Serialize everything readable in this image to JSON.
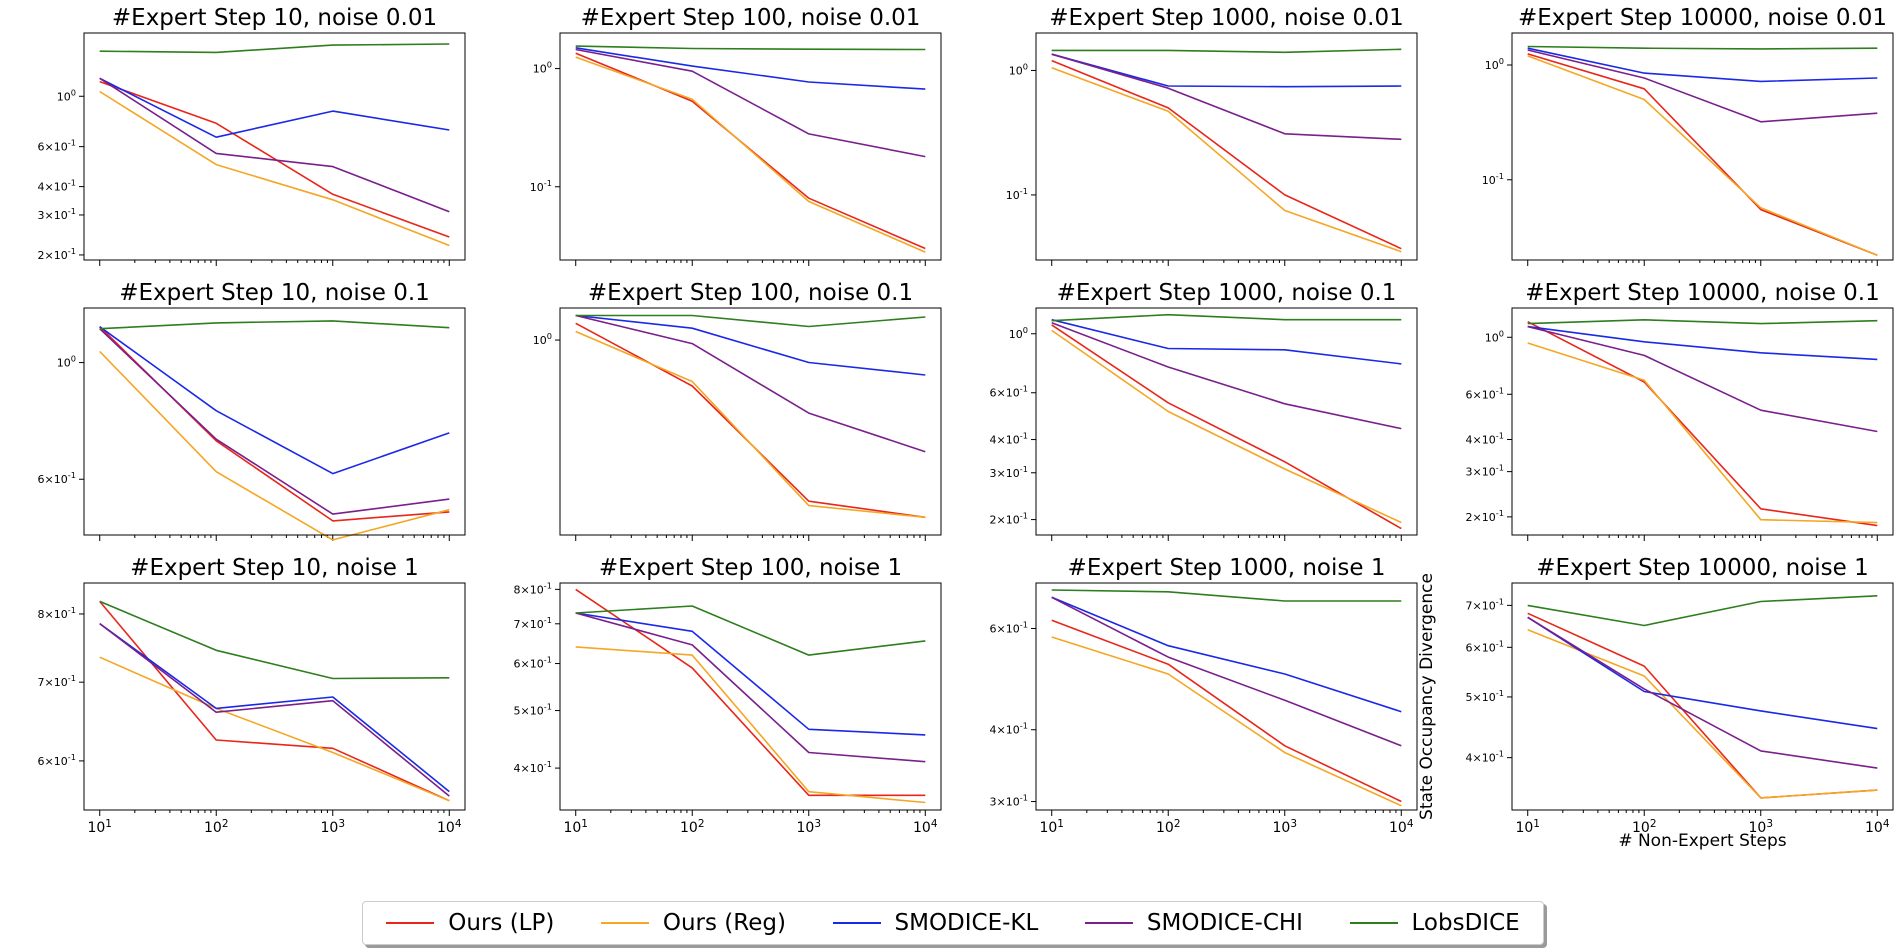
{
  "legend": [
    {
      "name": "Ours (LP)",
      "color": "#e8261a"
    },
    {
      "name": "Ours (Reg)",
      "color": "#f5a623"
    },
    {
      "name": "SMODICE-KL",
      "color": "#1a29e8"
    },
    {
      "name": "SMODICE-CHI",
      "color": "#7a1f8c"
    },
    {
      "name": "LobsDICE",
      "color": "#2e7d1e"
    }
  ],
  "chart_data": [
    {
      "type": "line",
      "title": "#Expert Step 10, noise 0.01",
      "xlabel": "",
      "ylabel": "",
      "x": [
        10,
        100,
        1000,
        10000
      ],
      "xtick_labels": [],
      "log_y": true,
      "ylim": [
        0.19,
        1.9
      ],
      "yticks": [
        {
          "v": 1.0,
          "l": "10^0"
        },
        {
          "v": 0.6,
          "l": "6×10^-1"
        },
        {
          "v": 0.4,
          "l": "4×10^-1"
        },
        {
          "v": 0.3,
          "l": "3×10^-1"
        },
        {
          "v": 0.2,
          "l": "2×10^-1"
        }
      ],
      "series": [
        {
          "name": "Ours (LP)",
          "values": [
            1.16,
            0.76,
            0.37,
            0.24
          ]
        },
        {
          "name": "Ours (Reg)",
          "values": [
            1.05,
            0.5,
            0.35,
            0.22
          ]
        },
        {
          "name": "SMODICE-KL",
          "values": [
            1.2,
            0.66,
            0.86,
            0.71
          ]
        },
        {
          "name": "SMODICE-CHI",
          "values": [
            1.2,
            0.56,
            0.49,
            0.31
          ]
        },
        {
          "name": "LobsDICE",
          "values": [
            1.58,
            1.56,
            1.68,
            1.7
          ]
        }
      ]
    },
    {
      "type": "line",
      "title": "#Expert Step 100, noise 0.01",
      "xlabel": "",
      "ylabel": "",
      "x": [
        10,
        100,
        1000,
        10000
      ],
      "xtick_labels": [],
      "log_y": true,
      "ylim": [
        0.024,
        2.0
      ],
      "yticks": [
        {
          "v": 1.0,
          "l": "10^0"
        },
        {
          "v": 0.1,
          "l": "10^-1"
        }
      ],
      "series": [
        {
          "name": "Ours (LP)",
          "values": [
            1.35,
            0.53,
            0.08,
            0.03
          ]
        },
        {
          "name": "Ours (Reg)",
          "values": [
            1.25,
            0.55,
            0.075,
            0.028
          ]
        },
        {
          "name": "SMODICE-KL",
          "values": [
            1.5,
            1.05,
            0.77,
            0.67
          ]
        },
        {
          "name": "SMODICE-CHI",
          "values": [
            1.45,
            0.95,
            0.28,
            0.18
          ]
        },
        {
          "name": "LobsDICE",
          "values": [
            1.55,
            1.48,
            1.46,
            1.45
          ]
        }
      ]
    },
    {
      "type": "line",
      "title": "#Expert Step 1000, noise 0.01",
      "xlabel": "",
      "ylabel": "",
      "x": [
        10,
        100,
        1000,
        10000
      ],
      "xtick_labels": [],
      "log_y": true,
      "ylim": [
        0.03,
        2.0
      ],
      "yticks": [
        {
          "v": 1.0,
          "l": "10^0"
        },
        {
          "v": 0.1,
          "l": "10^-1"
        }
      ],
      "series": [
        {
          "name": "Ours (LP)",
          "values": [
            1.2,
            0.5,
            0.1,
            0.037
          ]
        },
        {
          "name": "Ours (Reg)",
          "values": [
            1.05,
            0.47,
            0.075,
            0.035
          ]
        },
        {
          "name": "SMODICE-KL",
          "values": [
            1.35,
            0.75,
            0.74,
            0.75
          ]
        },
        {
          "name": "SMODICE-CHI",
          "values": [
            1.35,
            0.72,
            0.31,
            0.28
          ]
        },
        {
          "name": "LobsDICE",
          "values": [
            1.45,
            1.45,
            1.4,
            1.48
          ]
        }
      ]
    },
    {
      "type": "line",
      "title": "#Expert Step 10000, noise 0.01",
      "xlabel": "",
      "ylabel": "",
      "x": [
        10,
        100,
        1000,
        10000
      ],
      "xtick_labels": [],
      "log_y": true,
      "ylim": [
        0.02,
        1.9
      ],
      "yticks": [
        {
          "v": 1.0,
          "l": "10^0"
        },
        {
          "v": 0.1,
          "l": "10^-1"
        }
      ],
      "series": [
        {
          "name": "Ours (LP)",
          "values": [
            1.25,
            0.62,
            0.055,
            0.022
          ]
        },
        {
          "name": "Ours (Reg)",
          "values": [
            1.2,
            0.5,
            0.057,
            0.022
          ]
        },
        {
          "name": "SMODICE-KL",
          "values": [
            1.4,
            0.85,
            0.72,
            0.77
          ]
        },
        {
          "name": "SMODICE-CHI",
          "values": [
            1.35,
            0.77,
            0.32,
            0.38
          ]
        },
        {
          "name": "LobsDICE",
          "values": [
            1.45,
            1.4,
            1.38,
            1.4
          ]
        }
      ]
    },
    {
      "type": "line",
      "title": "#Expert Step 10, noise 0.1",
      "xlabel": "",
      "ylabel": "",
      "x": [
        10,
        100,
        1000,
        10000
      ],
      "xtick_labels": [],
      "log_y": true,
      "ylim": [
        0.47,
        1.27
      ],
      "yticks": [
        {
          "v": 1.0,
          "l": "10^0"
        },
        {
          "v": 0.6,
          "l": "6×10^-1"
        }
      ],
      "series": [
        {
          "name": "Ours (LP)",
          "values": [
            1.17,
            0.71,
            0.5,
            0.52
          ]
        },
        {
          "name": "Ours (Reg)",
          "values": [
            1.05,
            0.62,
            0.46,
            0.525
          ]
        },
        {
          "name": "SMODICE-KL",
          "values": [
            1.17,
            0.81,
            0.615,
            0.735
          ]
        },
        {
          "name": "SMODICE-CHI",
          "values": [
            1.16,
            0.715,
            0.515,
            0.55
          ]
        },
        {
          "name": "LobsDICE",
          "values": [
            1.16,
            1.19,
            1.2,
            1.165
          ]
        }
      ]
    },
    {
      "type": "line",
      "title": "#Expert Step 100, noise 0.1",
      "xlabel": "",
      "ylabel": "",
      "x": [
        10,
        100,
        1000,
        10000
      ],
      "xtick_labels": [],
      "log_y": true,
      "ylim": [
        0.33,
        1.2
      ],
      "yticks": [
        {
          "v": 1.0,
          "l": "10^0"
        }
      ],
      "series": [
        {
          "name": "Ours (LP)",
          "values": [
            1.1,
            0.77,
            0.4,
            0.365
          ]
        },
        {
          "name": "Ours (Reg)",
          "values": [
            1.05,
            0.79,
            0.39,
            0.365
          ]
        },
        {
          "name": "SMODICE-KL",
          "values": [
            1.15,
            1.07,
            0.88,
            0.82
          ]
        },
        {
          "name": "SMODICE-CHI",
          "values": [
            1.15,
            0.98,
            0.66,
            0.53
          ]
        },
        {
          "name": "LobsDICE",
          "values": [
            1.15,
            1.15,
            1.08,
            1.14
          ]
        }
      ]
    },
    {
      "type": "line",
      "title": "#Expert Step 1000, noise 0.1",
      "xlabel": "",
      "ylabel": "",
      "x": [
        10,
        100,
        1000,
        10000
      ],
      "xtick_labels": [],
      "log_y": true,
      "ylim": [
        0.175,
        1.25
      ],
      "yticks": [
        {
          "v": 1.0,
          "l": "10^0"
        },
        {
          "v": 0.6,
          "l": "6×10^-1"
        },
        {
          "v": 0.4,
          "l": "4×10^-1"
        },
        {
          "v": 0.3,
          "l": "3×10^-1"
        },
        {
          "v": 0.2,
          "l": "2×10^-1"
        }
      ],
      "series": [
        {
          "name": "Ours (LP)",
          "values": [
            1.08,
            0.55,
            0.33,
            0.185
          ]
        },
        {
          "name": "Ours (Reg)",
          "values": [
            1.03,
            0.51,
            0.31,
            0.195
          ]
        },
        {
          "name": "SMODICE-KL",
          "values": [
            1.13,
            0.88,
            0.87,
            0.77
          ]
        },
        {
          "name": "SMODICE-CHI",
          "values": [
            1.1,
            0.75,
            0.545,
            0.44
          ]
        },
        {
          "name": "LobsDICE",
          "values": [
            1.12,
            1.18,
            1.13,
            1.13
          ]
        }
      ]
    },
    {
      "type": "line",
      "title": "#Expert Step 10000, noise 0.1",
      "xlabel": "",
      "ylabel": "",
      "x": [
        10,
        100,
        1000,
        10000
      ],
      "xtick_labels": [],
      "log_y": true,
      "ylim": [
        0.17,
        1.3
      ],
      "yticks": [
        {
          "v": 1.0,
          "l": "10^0"
        },
        {
          "v": 0.6,
          "l": "6×10^-1"
        },
        {
          "v": 0.4,
          "l": "4×10^-1"
        },
        {
          "v": 0.3,
          "l": "3×10^-1"
        },
        {
          "v": 0.2,
          "l": "2×10^-1"
        }
      ],
      "series": [
        {
          "name": "Ours (LP)",
          "values": [
            1.15,
            0.67,
            0.215,
            0.185
          ]
        },
        {
          "name": "Ours (Reg)",
          "values": [
            0.95,
            0.68,
            0.195,
            0.19
          ]
        },
        {
          "name": "SMODICE-KL",
          "values": [
            1.1,
            0.96,
            0.87,
            0.82
          ]
        },
        {
          "name": "SMODICE-CHI",
          "values": [
            1.1,
            0.85,
            0.52,
            0.43
          ]
        },
        {
          "name": "LobsDICE",
          "values": [
            1.13,
            1.17,
            1.13,
            1.16
          ]
        }
      ]
    },
    {
      "type": "line",
      "title": "#Expert Step 10, noise 1",
      "xlabel": "",
      "ylabel": "",
      "x": [
        10,
        100,
        1000,
        10000
      ],
      "xtick_labels": [
        "10^1",
        "10^2",
        "10^3",
        "10^4"
      ],
      "log_y": true,
      "ylim": [
        0.545,
        0.85
      ],
      "yticks": [
        {
          "v": 0.8,
          "l": "8×10^-1"
        },
        {
          "v": 0.7,
          "l": "7×10^-1"
        },
        {
          "v": 0.6,
          "l": "6×10^-1"
        }
      ],
      "series": [
        {
          "name": "Ours (LP)",
          "values": [
            0.82,
            0.625,
            0.615,
            0.555
          ]
        },
        {
          "name": "Ours (Reg)",
          "values": [
            0.735,
            0.665,
            0.61,
            0.555
          ]
        },
        {
          "name": "SMODICE-KL",
          "values": [
            0.785,
            0.665,
            0.68,
            0.565
          ]
        },
        {
          "name": "SMODICE-CHI",
          "values": [
            0.785,
            0.66,
            0.675,
            0.56
          ]
        },
        {
          "name": "LobsDICE",
          "values": [
            0.82,
            0.745,
            0.705,
            0.706
          ]
        }
      ]
    },
    {
      "type": "line",
      "title": "#Expert Step 100, noise 1",
      "xlabel": "",
      "ylabel": "",
      "x": [
        10,
        100,
        1000,
        10000
      ],
      "xtick_labels": [
        "10^1",
        "10^2",
        "10^3",
        "10^4"
      ],
      "log_y": true,
      "ylim": [
        0.34,
        0.82
      ],
      "yticks": [
        {
          "v": 0.8,
          "l": "8×10^-1"
        },
        {
          "v": 0.7,
          "l": "7×10^-1"
        },
        {
          "v": 0.6,
          "l": "6×10^-1"
        },
        {
          "v": 0.5,
          "l": "5×10^-1"
        },
        {
          "v": 0.4,
          "l": "4×10^-1"
        }
      ],
      "series": [
        {
          "name": "Ours (LP)",
          "values": [
            0.8,
            0.59,
            0.36,
            0.36
          ]
        },
        {
          "name": "Ours (Reg)",
          "values": [
            0.64,
            0.62,
            0.365,
            0.35
          ]
        },
        {
          "name": "SMODICE-KL",
          "values": [
            0.73,
            0.68,
            0.465,
            0.455
          ]
        },
        {
          "name": "SMODICE-CHI",
          "values": [
            0.73,
            0.645,
            0.425,
            0.41
          ]
        },
        {
          "name": "LobsDICE",
          "values": [
            0.73,
            0.75,
            0.62,
            0.655
          ]
        }
      ]
    },
    {
      "type": "line",
      "title": "#Expert Step 1000, noise 1",
      "xlabel": "",
      "ylabel": "",
      "x": [
        10,
        100,
        1000,
        10000
      ],
      "xtick_labels": [
        "10^1",
        "10^2",
        "10^3",
        "10^4"
      ],
      "log_y": true,
      "ylim": [
        0.29,
        0.72
      ],
      "yticks": [
        {
          "v": 0.6,
          "l": "6×10^-1"
        },
        {
          "v": 0.4,
          "l": "4×10^-1"
        },
        {
          "v": 0.3,
          "l": "3×10^-1"
        }
      ],
      "series": [
        {
          "name": "Ours (LP)",
          "values": [
            0.62,
            0.52,
            0.375,
            0.3
          ]
        },
        {
          "name": "Ours (Reg)",
          "values": [
            0.58,
            0.5,
            0.365,
            0.295
          ]
        },
        {
          "name": "SMODICE-KL",
          "values": [
            0.68,
            0.56,
            0.5,
            0.43
          ]
        },
        {
          "name": "SMODICE-CHI",
          "values": [
            0.68,
            0.535,
            0.45,
            0.375
          ]
        },
        {
          "name": "LobsDICE",
          "values": [
            0.7,
            0.695,
            0.67,
            0.67
          ]
        }
      ]
    },
    {
      "type": "line",
      "title": "#Expert Step 10000, noise 1",
      "xlabel": "# Non-Expert Steps",
      "ylabel": "State Occupancy Divergence",
      "x": [
        10,
        100,
        1000,
        10000
      ],
      "xtick_labels": [
        "10^1",
        "10^2",
        "10^3",
        "10^4"
      ],
      "log_y": true,
      "ylim": [
        0.33,
        0.76
      ],
      "yticks": [
        {
          "v": 0.7,
          "l": "7×10^-1"
        },
        {
          "v": 0.6,
          "l": "6×10^-1"
        },
        {
          "v": 0.5,
          "l": "5×10^-1"
        },
        {
          "v": 0.4,
          "l": "4×10^-1"
        }
      ],
      "series": [
        {
          "name": "Ours (LP)",
          "values": [
            0.68,
            0.56,
            0.345,
            0.355
          ]
        },
        {
          "name": "Ours (Reg)",
          "values": [
            0.64,
            0.54,
            0.345,
            0.355
          ]
        },
        {
          "name": "SMODICE-KL",
          "values": [
            0.67,
            0.51,
            0.475,
            0.445
          ]
        },
        {
          "name": "SMODICE-CHI",
          "values": [
            0.67,
            0.515,
            0.41,
            0.385
          ]
        },
        {
          "name": "LobsDICE",
          "values": [
            0.7,
            0.65,
            0.71,
            0.725
          ]
        }
      ]
    }
  ]
}
